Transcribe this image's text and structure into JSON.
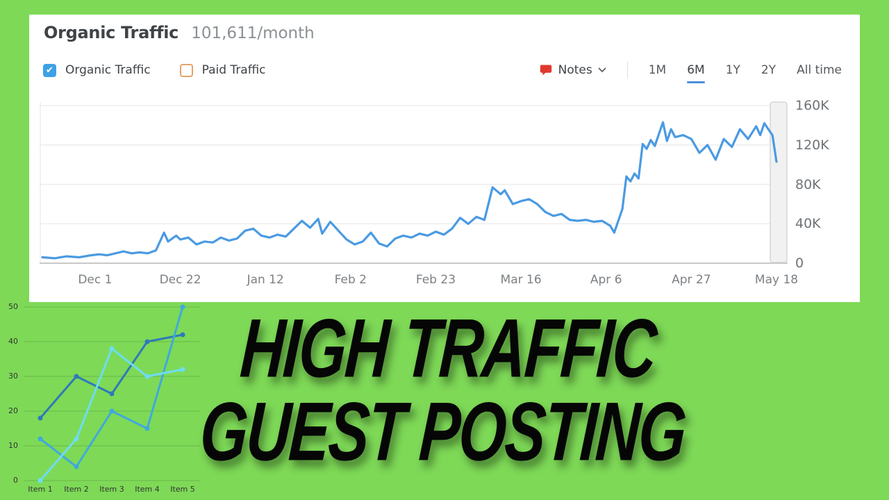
{
  "background_color": "#7ed957",
  "card": {
    "title": "Organic Traffic",
    "subtitle": "101,611/month",
    "legend": [
      {
        "label": "Organic Traffic",
        "checked": true,
        "checkbox_color": "#3ea1e6"
      },
      {
        "label": "Paid Traffic",
        "checked": false,
        "checkbox_color": "#e2a46a"
      }
    ],
    "notes": {
      "label": "Notes",
      "icon": "speech-bubble-icon",
      "icon_color": "#e0392e"
    },
    "ranges": {
      "options": [
        "1M",
        "6M",
        "1Y",
        "2Y",
        "All time"
      ],
      "active": "6M",
      "active_underline_color": "#4a90d9"
    }
  },
  "chart_data": [
    {
      "type": "line",
      "title": "Organic Traffic",
      "subtitle": "101,611/month",
      "x_unit": "days since Nov 18",
      "x_range": [
        0,
        181
      ],
      "ylim": [
        0,
        160
      ],
      "value_unit": "K visits/month",
      "grid": "horizontal",
      "legend_position": "top-left",
      "xticks": [
        {
          "d": 13,
          "label": "Dec 1"
        },
        {
          "d": 34,
          "label": "Dec 22"
        },
        {
          "d": 55,
          "label": "Jan 12"
        },
        {
          "d": 76,
          "label": "Feb 2"
        },
        {
          "d": 97,
          "label": "Feb 23"
        },
        {
          "d": 118,
          "label": "Mar 16"
        },
        {
          "d": 139,
          "label": "Apr 6"
        },
        {
          "d": 160,
          "label": "Apr 27"
        },
        {
          "d": 181,
          "label": "May 18"
        }
      ],
      "yticks": [
        {
          "v": 0,
          "label": "0"
        },
        {
          "v": 40,
          "label": "40K"
        },
        {
          "v": 80,
          "label": "80K"
        },
        {
          "v": 120,
          "label": "120K"
        },
        {
          "v": 160,
          "label": "160K"
        }
      ],
      "series": [
        {
          "name": "Organic Traffic",
          "color": "#4a9ae2",
          "points": [
            [
              0,
              6
            ],
            [
              3,
              5
            ],
            [
              6,
              7
            ],
            [
              9,
              6
            ],
            [
              12,
              8
            ],
            [
              14,
              9
            ],
            [
              16,
              8
            ],
            [
              18,
              10
            ],
            [
              20,
              12
            ],
            [
              22,
              10
            ],
            [
              24,
              11
            ],
            [
              26,
              10
            ],
            [
              28,
              13
            ],
            [
              30,
              31
            ],
            [
              31,
              22
            ],
            [
              33,
              28
            ],
            [
              34,
              24
            ],
            [
              36,
              26
            ],
            [
              38,
              19
            ],
            [
              40,
              22
            ],
            [
              42,
              21
            ],
            [
              44,
              26
            ],
            [
              46,
              23
            ],
            [
              48,
              25
            ],
            [
              50,
              33
            ],
            [
              52,
              35
            ],
            [
              54,
              28
            ],
            [
              56,
              26
            ],
            [
              58,
              29
            ],
            [
              60,
              27
            ],
            [
              62,
              35
            ],
            [
              64,
              43
            ],
            [
              66,
              36
            ],
            [
              68,
              45
            ],
            [
              69,
              30
            ],
            [
              71,
              42
            ],
            [
              73,
              33
            ],
            [
              75,
              24
            ],
            [
              77,
              19
            ],
            [
              79,
              22
            ],
            [
              81,
              31
            ],
            [
              83,
              20
            ],
            [
              85,
              17
            ],
            [
              87,
              25
            ],
            [
              89,
              28
            ],
            [
              91,
              26
            ],
            [
              93,
              30
            ],
            [
              95,
              28
            ],
            [
              97,
              32
            ],
            [
              99,
              29
            ],
            [
              101,
              35
            ],
            [
              103,
              46
            ],
            [
              105,
              40
            ],
            [
              107,
              47
            ],
            [
              109,
              44
            ],
            [
              111,
              77
            ],
            [
              113,
              70
            ],
            [
              114,
              74
            ],
            [
              116,
              60
            ],
            [
              118,
              63
            ],
            [
              120,
              65
            ],
            [
              122,
              60
            ],
            [
              124,
              52
            ],
            [
              126,
              48
            ],
            [
              128,
              50
            ],
            [
              130,
              44
            ],
            [
              132,
              43
            ],
            [
              134,
              44
            ],
            [
              136,
              42
            ],
            [
              138,
              43
            ],
            [
              140,
              38
            ],
            [
              141,
              31
            ],
            [
              143,
              55
            ],
            [
              144,
              88
            ],
            [
              145,
              83
            ],
            [
              146,
              91
            ],
            [
              147,
              86
            ],
            [
              148,
              121
            ],
            [
              149,
              116
            ],
            [
              150,
              125
            ],
            [
              151,
              119
            ],
            [
              153,
              143
            ],
            [
              154,
              124
            ],
            [
              155,
              136
            ],
            [
              156,
              128
            ],
            [
              158,
              130
            ],
            [
              160,
              126
            ],
            [
              162,
              112
            ],
            [
              164,
              120
            ],
            [
              166,
              105
            ],
            [
              168,
              126
            ],
            [
              170,
              118
            ],
            [
              172,
              136
            ],
            [
              174,
              126
            ],
            [
              176,
              139
            ],
            [
              177,
              130
            ],
            [
              178,
              142
            ],
            [
              179,
              136
            ],
            [
              180,
              130
            ],
            [
              181,
              103
            ]
          ]
        }
      ]
    },
    {
      "type": "line",
      "title": "",
      "categories": [
        "Item 1",
        "Item 2",
        "Item 3",
        "Item 4",
        "Item 5"
      ],
      "ylim": [
        0,
        50
      ],
      "yticks": [
        0,
        10,
        20,
        30,
        40,
        50
      ],
      "grid": "horizontal",
      "series": [
        {
          "name": "series-dark-blue",
          "color": "#2e7ab8",
          "values": [
            18,
            30,
            25,
            40,
            42
          ]
        },
        {
          "name": "series-medium-blue",
          "color": "#3fa9dc",
          "values": [
            12,
            4,
            20,
            15,
            50
          ]
        },
        {
          "name": "series-light-cyan",
          "color": "#6edcf3",
          "values": [
            0,
            12,
            38,
            30,
            32
          ]
        }
      ]
    }
  ],
  "headline": {
    "line1": "HIGH TRAFFIC",
    "line2": "GUEST POSTING",
    "color": "#060606"
  }
}
